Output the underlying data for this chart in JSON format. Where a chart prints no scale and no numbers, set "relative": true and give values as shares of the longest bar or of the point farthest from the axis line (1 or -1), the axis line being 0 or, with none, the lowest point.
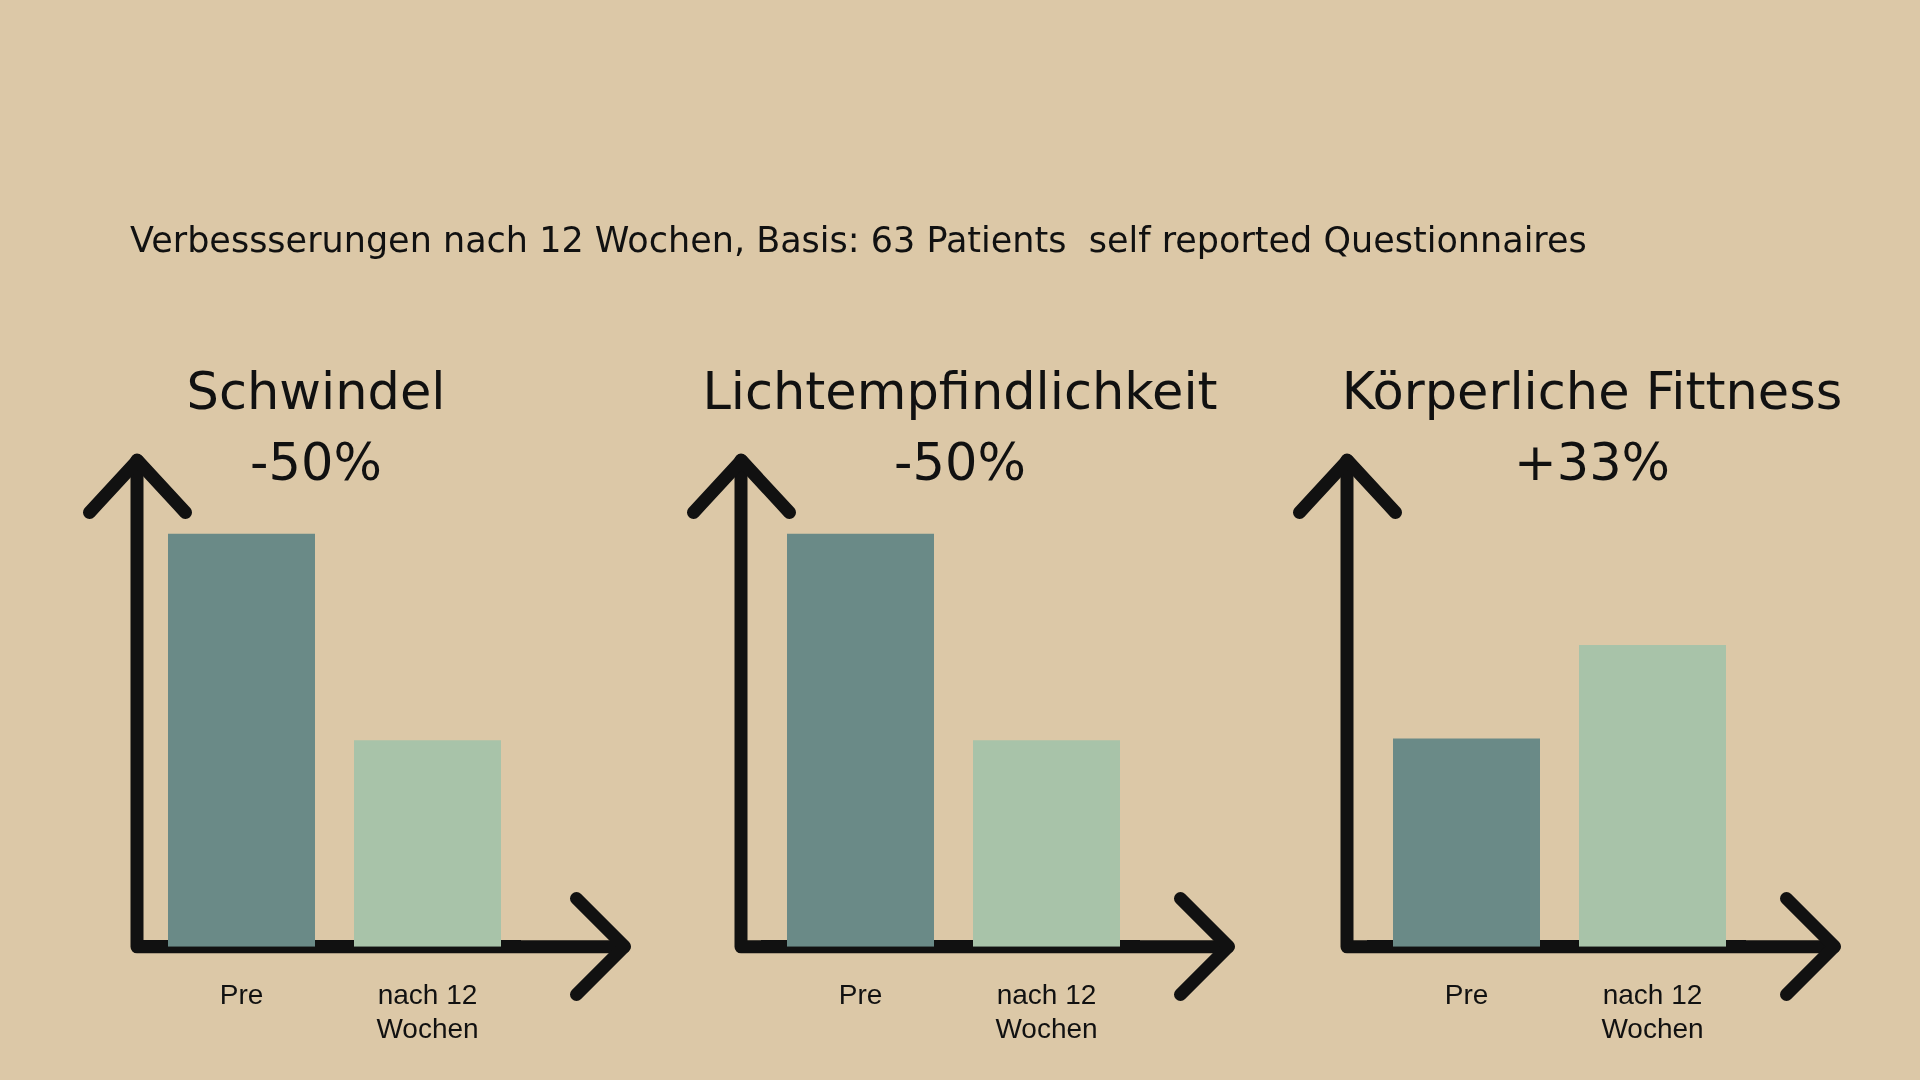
{
  "chart_data": [
    {
      "type": "bar",
      "title": "Schwindel",
      "subtitle": "-50%",
      "annotations": [
        "Verbessserungen nach 12 Wochen, Basis: 63 Patients  self reported Questionnaires"
      ],
      "categories": [
        "Pre",
        "nach 12 Wochen"
      ],
      "values": [
        1,
        0.5
      ],
      "colors": [
        "#6a8a87",
        "#a8c3a9"
      ],
      "relative": true,
      "tick_labels": "x"
    },
    {
      "type": "bar",
      "title": "Lichtempfindlichkeit",
      "subtitle": "-50%",
      "categories": [
        "Pre",
        "nach 12 Wochen"
      ],
      "values": [
        1,
        0.5
      ],
      "colors": [
        "#6a8a87",
        "#a8c3a9"
      ],
      "relative": true,
      "tick_labels": "x"
    },
    {
      "type": "bar",
      "title": "Körperliche Fittness",
      "subtitle": "+33%",
      "categories": [
        "Pre",
        "nach 12 Wochen"
      ],
      "values": [
        0.69,
        1
      ],
      "colors": [
        "#6a8a87",
        "#a8c3a9"
      ],
      "relative": true,
      "tick_labels": "x"
    }
  ]
}
